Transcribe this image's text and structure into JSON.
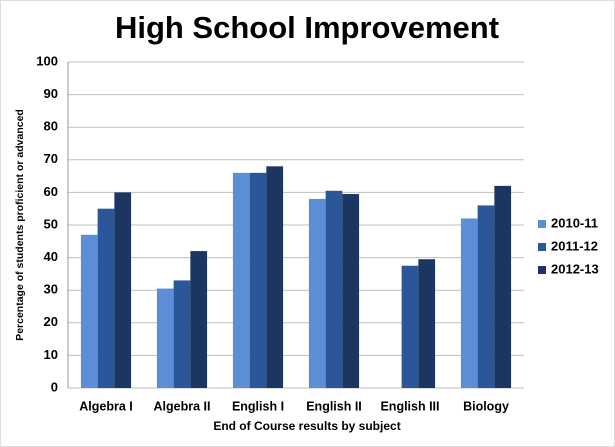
{
  "chart_data": {
    "type": "bar",
    "title": "High School Improvement",
    "x_label": "End of Course results by subject",
    "y_label": "Percentage of students  proficient or advanced",
    "categories": [
      "Algebra I",
      "Algebra II",
      "English I",
      "English II",
      "English III",
      "Biology"
    ],
    "series": [
      {
        "name": "2010-11",
        "color": "#5b8ed6",
        "values": [
          47,
          30.5,
          66,
          58,
          null,
          52
        ]
      },
      {
        "name": "2011-12",
        "color": "#2b569a",
        "values": [
          55,
          33,
          66,
          60.5,
          37.5,
          56
        ]
      },
      {
        "name": "2012-13",
        "color": "#1b3661",
        "values": [
          60,
          42,
          68,
          59.5,
          39.5,
          62
        ]
      }
    ],
    "ylim": [
      0,
      100
    ],
    "yticks": [
      0,
      10,
      20,
      30,
      40,
      50,
      60,
      70,
      80,
      90,
      100
    ],
    "grid": true,
    "legend": "right"
  }
}
